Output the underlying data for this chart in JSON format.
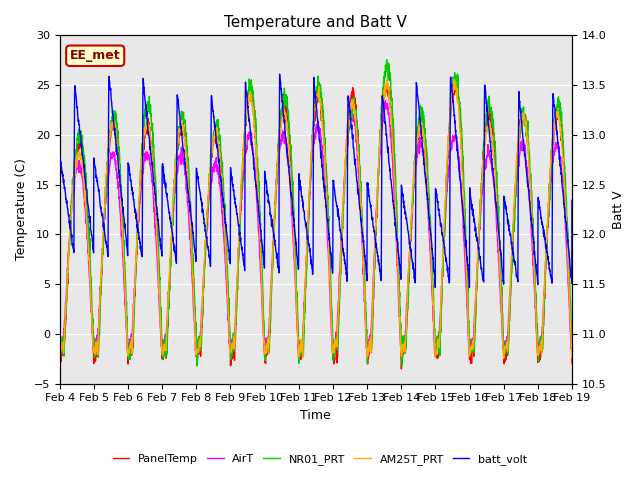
{
  "title": "Temperature and Batt V",
  "ylabel_left": "Temperature (C)",
  "ylabel_right": "Batt V",
  "xlabel": "Time",
  "station_label": "EE_met",
  "ylim_left": [
    -5,
    30
  ],
  "ylim_right": [
    10.5,
    14.0
  ],
  "xlim": [
    0,
    15
  ],
  "xtick_labels": [
    "Feb 4",
    "Feb 5",
    "Feb 6",
    "Feb 7",
    "Feb 8",
    "Feb 9",
    "Feb 10",
    "Feb 11",
    "Feb 12",
    "Feb 13",
    "Feb 14",
    "Feb 15",
    "Feb 16",
    "Feb 17",
    "Feb 18",
    "Feb 19"
  ],
  "colors": {
    "PanelTemp": "#ff0000",
    "AirT": "#ff00ff",
    "NR01_PRT": "#00cc00",
    "AM25T_PRT": "#ffaa00",
    "batt_volt": "#0000ff"
  },
  "legend_labels": [
    "PanelTemp",
    "AirT",
    "NR01_PRT",
    "AM25T_PRT",
    "batt_volt"
  ],
  "plot_bg_color": "#e8e8e8",
  "fig_bg_color": "#ffffff",
  "grid_color": "#ffffff",
  "num_days": 15,
  "label_box_facecolor": "#ffffcc",
  "label_box_edgecolor": "#cc0000",
  "label_text_color": "#880000"
}
